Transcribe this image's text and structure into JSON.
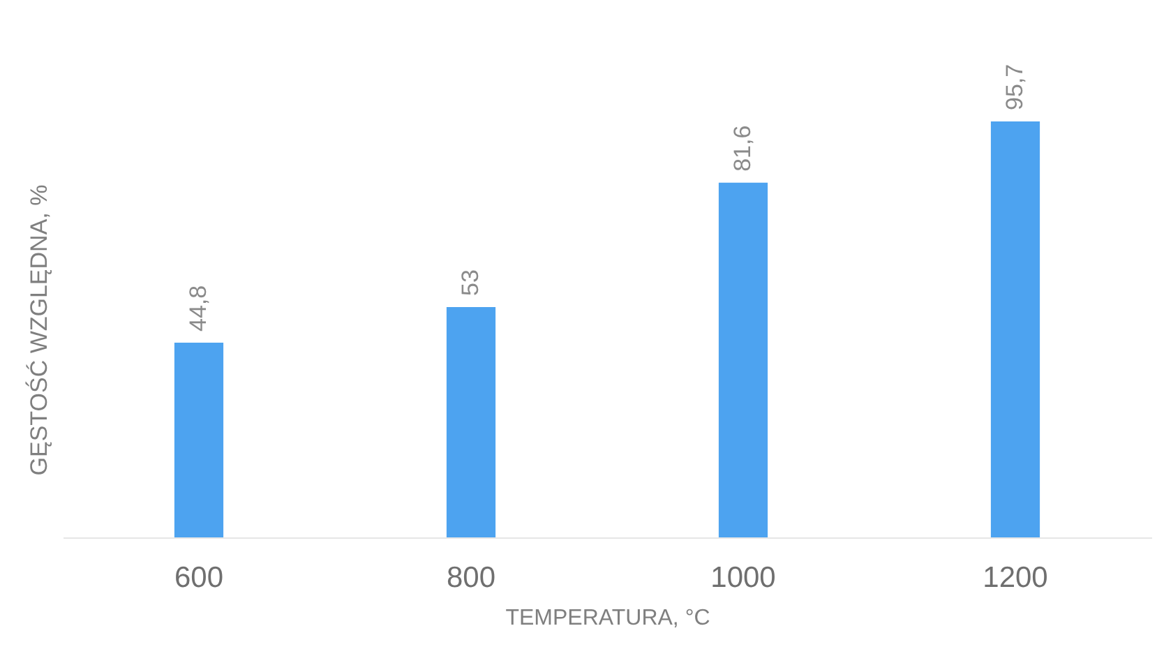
{
  "chart_data": {
    "type": "bar",
    "xlabel": "TEMPERATURA, °C",
    "ylabel": "GĘSTOŚĆ WZGLĘDNA, %",
    "categories": [
      "600",
      "800",
      "1000",
      "1200"
    ],
    "values": [
      44.8,
      53,
      81.6,
      95.7
    ],
    "value_labels": [
      "44,8",
      "53",
      "81,6",
      "95,7"
    ],
    "color": "#4da3f0",
    "tick_labels": "x"
  }
}
